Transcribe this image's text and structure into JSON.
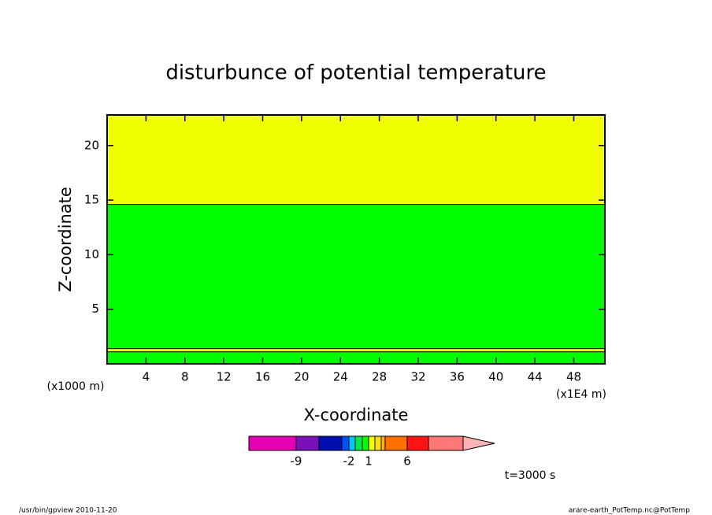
{
  "chart_data": {
    "type": "contour",
    "title": "disturbunce of potential temperature",
    "xlabel": "X-coordinate",
    "ylabel": "Z-coordinate",
    "xunit": "(x1E4 m)",
    "yunit": "(x1000 m)",
    "xlim": [
      0,
      51.2
    ],
    "ylim": [
      0,
      22.8
    ],
    "xticks": [
      4,
      8,
      12,
      16,
      20,
      24,
      28,
      32,
      36,
      40,
      44,
      48
    ],
    "yticks": [
      5,
      10,
      15,
      20
    ],
    "bands": [
      {
        "zmin": 0,
        "zmax": 1.1,
        "color": "#00ff00"
      },
      {
        "zmin": 1.1,
        "zmax": 1.4,
        "color": "#f0ff00"
      },
      {
        "zmin": 1.4,
        "zmax": 14.6,
        "color": "#00ff00"
      },
      {
        "zmin": 14.6,
        "zmax": 22.8,
        "color": "#f0ff00"
      }
    ],
    "colorbar": {
      "colors": [
        "#e600b4",
        "#7a10b8",
        "#0010b0",
        "#0050ff",
        "#00c8ff",
        "#00e850",
        "#00ff00",
        "#f0ff00",
        "#ffe000",
        "#ffb400",
        "#ff7000",
        "#ff1414",
        "#ff7878",
        "#ffb4b4"
      ],
      "ticks": [
        -9,
        -2,
        1,
        6
      ]
    },
    "annotation": "t=3000 s",
    "footer_left": "/usr/bin/gpview   2010-11-20",
    "footer_right": "arare-earth_PotTemp.nc@PotTemp"
  }
}
